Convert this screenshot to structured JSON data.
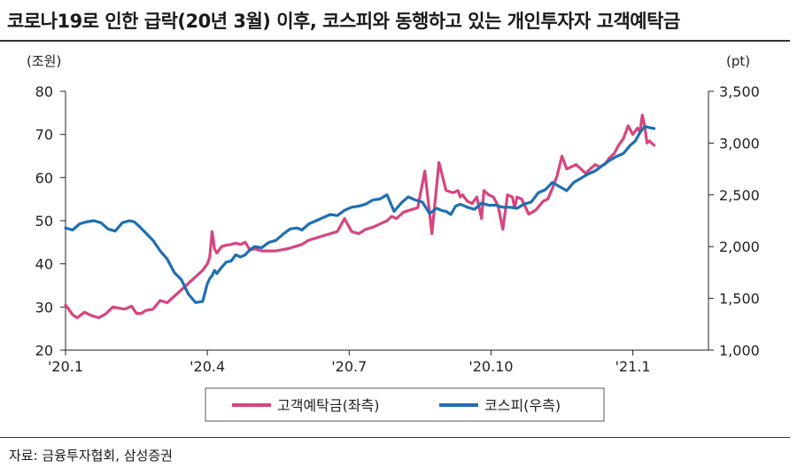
{
  "title": "코로나19로 인한 급락(20년 3월) 이후, 코스피와 동행하고 있는 개인투자자 고객예탁금",
  "source": "자료: 금융투자협회, 삼성증권",
  "chart_data": {
    "type": "line",
    "left_unit": "(조원)",
    "right_unit": "(pt)",
    "left_ylim": [
      20,
      80
    ],
    "left_ticks": [
      "20",
      "30",
      "40",
      "50",
      "60",
      "70",
      "80"
    ],
    "right_ylim": [
      1000,
      3500
    ],
    "right_ticks": [
      "1,000",
      "1,500",
      "2,000",
      "2,500",
      "3,000",
      "3,500"
    ],
    "xlim": [
      0,
      13.6
    ],
    "x_ticks": [
      {
        "label": "'20.1",
        "month_index": 0
      },
      {
        "label": "'20.4",
        "month_index": 3
      },
      {
        "label": "'20.7",
        "month_index": 6
      },
      {
        "label": "'20.10",
        "month_index": 9
      },
      {
        "label": "'21.1",
        "month_index": 12
      }
    ],
    "series": [
      {
        "name": "고객예탁금(좌측)",
        "axis": "left",
        "color": "#d6457f",
        "x": [
          0.0,
          0.15,
          0.25,
          0.4,
          0.55,
          0.7,
          0.85,
          1.0,
          1.1,
          1.25,
          1.4,
          1.5,
          1.6,
          1.7,
          1.85,
          2.0,
          2.15,
          2.3,
          2.45,
          2.6,
          2.75,
          2.9,
          3.0,
          3.05,
          3.1,
          3.15,
          3.2,
          3.3,
          3.4,
          3.5,
          3.6,
          3.7,
          3.8,
          3.9,
          4.0,
          4.15,
          4.3,
          4.45,
          4.55,
          4.7,
          4.85,
          5.0,
          5.15,
          5.3,
          5.45,
          5.6,
          5.75,
          5.9,
          6.05,
          6.2,
          6.35,
          6.5,
          6.6,
          6.7,
          6.8,
          6.9,
          7.0,
          7.15,
          7.3,
          7.45,
          7.6,
          7.75,
          7.9,
          8.05,
          8.2,
          8.3,
          8.35,
          8.4,
          8.5,
          8.6,
          8.7,
          8.8,
          8.85,
          8.95,
          9.05,
          9.15,
          9.25,
          9.35,
          9.45,
          9.5,
          9.55,
          9.65,
          9.8,
          9.95,
          10.1,
          10.2,
          10.3,
          10.4,
          10.5,
          10.6,
          10.7,
          10.8,
          10.9,
          11.0,
          11.1,
          11.2,
          11.3,
          11.4,
          11.5,
          11.6,
          11.7,
          11.8,
          11.9,
          12.0,
          12.1,
          12.15,
          12.2,
          12.25,
          12.3,
          12.35,
          12.4,
          12.45
        ],
        "values": [
          30.5,
          28.2,
          27.5,
          28.8,
          28.0,
          27.5,
          28.4,
          30.0,
          29.8,
          29.5,
          30.2,
          28.5,
          28.5,
          29.2,
          29.5,
          31.5,
          31.0,
          32.5,
          34.0,
          35.5,
          37.0,
          38.5,
          40.0,
          41.5,
          47.5,
          43.5,
          42.5,
          44.0,
          44.3,
          44.5,
          44.8,
          44.5,
          45.0,
          43.2,
          43.5,
          43.0,
          43.0,
          43.0,
          43.2,
          43.5,
          44.0,
          44.5,
          45.5,
          46.0,
          46.5,
          47.0,
          47.5,
          50.5,
          47.5,
          47.0,
          48.0,
          48.5,
          49.0,
          49.5,
          50.0,
          51.0,
          50.5,
          52.0,
          52.5,
          53.0,
          61.5,
          47.0,
          63.5,
          57.0,
          56.5,
          57.0,
          55.5,
          56.0,
          54.5,
          54.0,
          55.5,
          50.5,
          57.0,
          56.0,
          55.5,
          53.5,
          48.0,
          56.0,
          55.5,
          53.0,
          55.5,
          55.0,
          51.5,
          52.5,
          54.5,
          55.0,
          57.5,
          60.5,
          65.0,
          62.0,
          62.5,
          63.0,
          62.0,
          61.0,
          62.0,
          63.0,
          62.5,
          63.0,
          64.5,
          65.5,
          67.5,
          69.0,
          72.0,
          70.0,
          71.5,
          70.5,
          74.5,
          72.0,
          68.0,
          68.5,
          68.0,
          67.5
        ]
      },
      {
        "name": "코스피(우측)",
        "axis": "right",
        "color": "#1f6fb2",
        "x": [
          0.0,
          0.15,
          0.3,
          0.45,
          0.6,
          0.75,
          0.9,
          1.05,
          1.2,
          1.35,
          1.45,
          1.55,
          1.7,
          1.85,
          2.0,
          2.15,
          2.3,
          2.45,
          2.6,
          2.75,
          2.9,
          3.0,
          3.05,
          3.1,
          3.15,
          3.2,
          3.3,
          3.4,
          3.5,
          3.6,
          3.7,
          3.8,
          3.9,
          4.0,
          4.15,
          4.3,
          4.45,
          4.6,
          4.75,
          4.9,
          5.0,
          5.15,
          5.3,
          5.45,
          5.6,
          5.75,
          5.9,
          6.05,
          6.2,
          6.35,
          6.5,
          6.65,
          6.8,
          6.95,
          7.1,
          7.25,
          7.4,
          7.55,
          7.7,
          7.85,
          7.95,
          8.05,
          8.15,
          8.25,
          8.35,
          8.5,
          8.65,
          8.8,
          8.95,
          9.1,
          9.25,
          9.4,
          9.55,
          9.7,
          9.85,
          10.0,
          10.15,
          10.3,
          10.45,
          10.6,
          10.75,
          10.9,
          11.05,
          11.2,
          11.35,
          11.5,
          11.65,
          11.8,
          11.95,
          12.05,
          12.15,
          12.25,
          12.35,
          12.45
        ],
        "values": [
          2180,
          2160,
          2220,
          2240,
          2250,
          2230,
          2170,
          2150,
          2230,
          2250,
          2240,
          2200,
          2130,
          2060,
          1960,
          1880,
          1750,
          1680,
          1540,
          1460,
          1470,
          1640,
          1690,
          1720,
          1770,
          1740,
          1800,
          1850,
          1860,
          1920,
          1900,
          1920,
          1970,
          2000,
          1990,
          2040,
          2060,
          2120,
          2170,
          2180,
          2160,
          2220,
          2250,
          2280,
          2310,
          2300,
          2350,
          2380,
          2390,
          2410,
          2450,
          2460,
          2500,
          2340,
          2420,
          2480,
          2450,
          2430,
          2320,
          2370,
          2350,
          2340,
          2310,
          2390,
          2410,
          2380,
          2360,
          2420,
          2400,
          2400,
          2380,
          2380,
          2370,
          2410,
          2430,
          2520,
          2550,
          2620,
          2580,
          2540,
          2620,
          2660,
          2700,
          2730,
          2780,
          2830,
          2870,
          2900,
          2980,
          3020,
          3100,
          3160,
          3150,
          3140
        ]
      }
    ],
    "legend_position": "bottom-center"
  }
}
